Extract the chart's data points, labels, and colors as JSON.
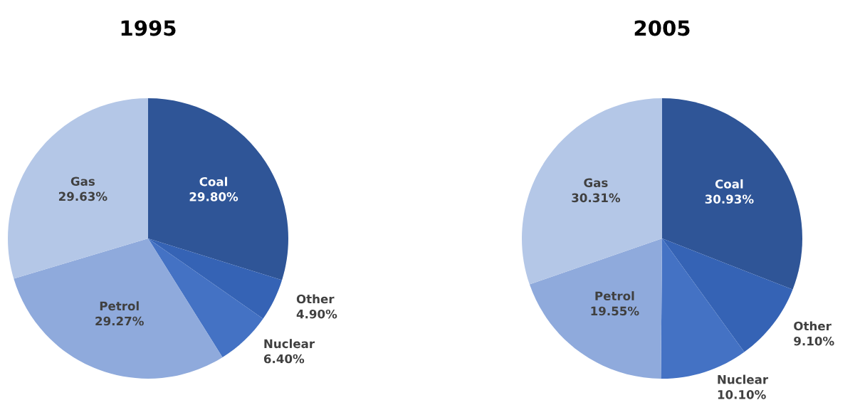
{
  "chart_data": [
    {
      "type": "pie",
      "title": "1995",
      "categories": [
        "Coal",
        "Other",
        "Nuclear",
        "Petrol",
        "Gas"
      ],
      "values": [
        29.8,
        4.9,
        6.4,
        29.27,
        29.63
      ],
      "value_labels": [
        "29.80%",
        "4.90%",
        "6.40%",
        "29.27%",
        "29.63%"
      ],
      "colors": [
        "#2f5597",
        "#3563b5",
        "#4472c4",
        "#8faadc",
        "#b4c7e7"
      ]
    },
    {
      "type": "pie",
      "title": "2005",
      "categories": [
        "Coal",
        "Other",
        "Nuclear",
        "Petrol",
        "Gas"
      ],
      "values": [
        30.93,
        9.1,
        10.1,
        19.55,
        30.31
      ],
      "value_labels": [
        "30.93%",
        "9.10%",
        "10.10%",
        "19.55%",
        "30.31%"
      ],
      "colors": [
        "#2f5597",
        "#3563b5",
        "#4472c4",
        "#8faadc",
        "#b4c7e7"
      ]
    }
  ]
}
